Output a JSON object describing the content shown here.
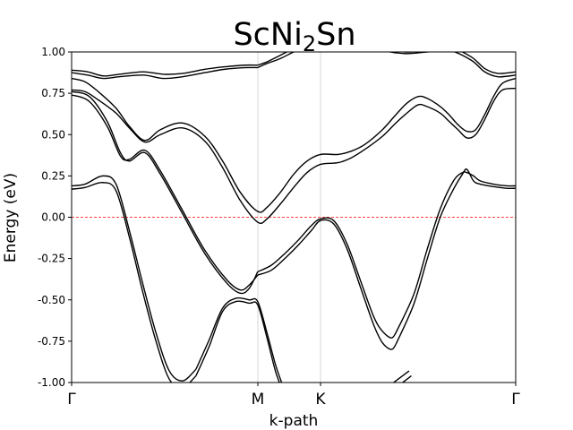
{
  "chart_data": {
    "type": "line",
    "title": {
      "prefix": "ScNi",
      "subscript": "2",
      "suffix": "Sn"
    },
    "xlabel": "k-path",
    "ylabel": "Energy (eV)",
    "ylim": [
      -1.0,
      1.0
    ],
    "yticks": [
      "-1.00",
      "-0.75",
      "-0.50",
      "-0.25",
      "0.00",
      "0.25",
      "0.50",
      "0.75",
      "1.00"
    ],
    "xlim": [
      0,
      1
    ],
    "kpoints": [
      {
        "label": "Γ",
        "x": 0.0
      },
      {
        "label": "M",
        "x": 0.4194
      },
      {
        "label": "K",
        "x": 0.5605
      },
      {
        "label": "Γ",
        "x": 1.0
      }
    ],
    "fermi_level": 0.0,
    "fermi_color": "#ff0000",
    "line_color": "#000000",
    "grid_color": "#cccccc",
    "series": [
      {
        "x": [
          0,
          0.036,
          0.071,
          0.107,
          0.161,
          0.207,
          0.25,
          0.3,
          0.344,
          0.389,
          0.419
        ],
        "values": [
          0.89,
          0.88,
          0.855,
          0.865,
          0.88,
          0.865,
          0.87,
          0.895,
          0.91,
          0.92,
          0.92
        ]
      },
      {
        "x": [
          0,
          0.036,
          0.071,
          0.107,
          0.161,
          0.207,
          0.25,
          0.3,
          0.344,
          0.389,
          0.419
        ],
        "values": [
          0.875,
          0.86,
          0.84,
          0.85,
          0.86,
          0.84,
          0.85,
          0.875,
          0.895,
          0.905,
          0.905
        ]
      },
      {
        "x": [
          0.419,
          0.44,
          0.47,
          0.5,
          0.53,
          0.5605,
          0.6,
          0.65,
          0.7,
          0.75,
          0.8,
          0.85,
          0.9,
          0.93,
          0.96,
          1.0
        ],
        "values": [
          0.92,
          0.94,
          0.98,
          1.02,
          1.05,
          1.07,
          1.09,
          1.08,
          1.03,
          1.0,
          1.01,
          1.03,
          0.97,
          0.9,
          0.87,
          0.88
        ]
      },
      {
        "x": [
          0.419,
          0.44,
          0.47,
          0.5,
          0.53,
          0.5605,
          0.6,
          0.65,
          0.7,
          0.75,
          0.8,
          0.85,
          0.9,
          0.93,
          0.96,
          1.0
        ],
        "values": [
          0.905,
          0.93,
          0.96,
          1.0,
          1.03,
          1.05,
          1.07,
          1.06,
          1.01,
          0.99,
          1.0,
          1.01,
          0.95,
          0.88,
          0.85,
          0.86
        ]
      },
      {
        "x": [
          0,
          0.03,
          0.06,
          0.1,
          0.13,
          0.165,
          0.2,
          0.25,
          0.3,
          0.34,
          0.38,
          0.419,
          0.44,
          0.47,
          0.5,
          0.53,
          0.5605,
          0.6,
          0.63,
          0.66,
          0.7,
          0.73,
          0.755,
          0.78,
          0.8,
          0.83,
          0.85,
          0.87,
          0.89,
          0.91,
          0.93,
          0.95,
          0.97,
          1.0
        ],
        "values": [
          0.84,
          0.82,
          0.76,
          0.66,
          0.55,
          0.465,
          0.53,
          0.57,
          0.49,
          0.34,
          0.15,
          0.035,
          0.06,
          0.15,
          0.26,
          0.34,
          0.38,
          0.38,
          0.4,
          0.44,
          0.53,
          0.62,
          0.69,
          0.73,
          0.72,
          0.67,
          0.62,
          0.56,
          0.52,
          0.53,
          0.62,
          0.73,
          0.81,
          0.84
        ]
      },
      {
        "x": [
          0,
          0.03,
          0.06,
          0.1,
          0.13,
          0.165,
          0.2,
          0.25,
          0.3,
          0.34,
          0.38,
          0.419,
          0.44,
          0.47,
          0.5,
          0.53,
          0.5605,
          0.6,
          0.63,
          0.66,
          0.7,
          0.73,
          0.755,
          0.78,
          0.8,
          0.83,
          0.85,
          0.87,
          0.89,
          0.91,
          0.93,
          0.95,
          0.97,
          1.0
        ],
        "values": [
          0.77,
          0.76,
          0.71,
          0.63,
          0.54,
          0.455,
          0.5,
          0.54,
          0.46,
          0.3,
          0.1,
          -0.03,
          -0.01,
          0.08,
          0.18,
          0.27,
          0.32,
          0.33,
          0.36,
          0.41,
          0.49,
          0.57,
          0.63,
          0.68,
          0.67,
          0.63,
          0.58,
          0.53,
          0.48,
          0.5,
          0.59,
          0.7,
          0.77,
          0.78
        ]
      },
      {
        "x": [
          0,
          0.04,
          0.08,
          0.11,
          0.13,
          0.165,
          0.2,
          0.25,
          0.3,
          0.35,
          0.38,
          0.4,
          0.419
        ],
        "values": [
          0.76,
          0.73,
          0.58,
          0.39,
          0.34,
          0.39,
          0.26,
          0.02,
          -0.22,
          -0.4,
          -0.46,
          -0.43,
          -0.33
        ]
      },
      {
        "x": [
          0,
          0.04,
          0.08,
          0.11,
          0.13,
          0.165,
          0.2,
          0.25,
          0.3,
          0.35,
          0.38,
          0.4,
          0.419
        ],
        "values": [
          0.74,
          0.7,
          0.55,
          0.37,
          0.35,
          0.405,
          0.28,
          0.04,
          -0.2,
          -0.38,
          -0.44,
          -0.41,
          -0.35
        ]
      },
      {
        "x": [
          0.419,
          0.45,
          0.48,
          0.51,
          0.54,
          0.5605,
          0.59,
          0.62,
          0.65,
          0.68,
          0.7,
          0.72,
          0.73
        ],
        "values": [
          -0.33,
          -0.29,
          -0.22,
          -0.14,
          -0.05,
          -0.01,
          -0.02,
          -0.16,
          -0.38,
          -0.6,
          -0.69,
          -0.73,
          -0.7
        ]
      },
      {
        "x": [
          0.419,
          0.45,
          0.48,
          0.51,
          0.54,
          0.5605,
          0.59,
          0.62,
          0.65,
          0.68,
          0.7,
          0.72,
          0.73
        ],
        "values": [
          -0.35,
          -0.32,
          -0.25,
          -0.17,
          -0.08,
          -0.02,
          -0.04,
          -0.19,
          -0.42,
          -0.65,
          -0.76,
          -0.8,
          -0.77
        ]
      },
      {
        "x": [
          0.73,
          0.77,
          0.8,
          0.83,
          0.86,
          0.88,
          0.89,
          0.905,
          0.92,
          0.95,
          0.98,
          1.0
        ],
        "values": [
          -0.7,
          -0.47,
          -0.2,
          0.05,
          0.22,
          0.27,
          0.27,
          0.25,
          0.22,
          0.2,
          0.19,
          0.19
        ]
      },
      {
        "x": [
          0.73,
          0.77,
          0.8,
          0.83,
          0.86,
          0.88,
          0.89,
          0.905,
          0.92,
          0.95,
          0.98,
          1.0
        ],
        "values": [
          -0.77,
          -0.53,
          -0.26,
          0.0,
          0.17,
          0.26,
          0.29,
          0.22,
          0.2,
          0.185,
          0.175,
          0.175
        ]
      },
      {
        "x": [
          0,
          0.03,
          0.07,
          0.1,
          0.13,
          0.16,
          0.19,
          0.22,
          0.25,
          0.28
        ],
        "values": [
          0.19,
          0.2,
          0.25,
          0.2,
          -0.08,
          -0.4,
          -0.7,
          -0.93,
          -0.99,
          -0.92
        ]
      },
      {
        "x": [
          0,
          0.03,
          0.07,
          0.1,
          0.13,
          0.16,
          0.19,
          0.22,
          0.25,
          0.28
        ],
        "values": [
          0.17,
          0.18,
          0.21,
          0.16,
          -0.12,
          -0.45,
          -0.75,
          -0.98,
          -1.03,
          -0.96
        ]
      },
      {
        "x": [
          0.28,
          0.31,
          0.34,
          0.37,
          0.4,
          0.419,
          0.44,
          0.46,
          0.48
        ],
        "values": [
          -0.92,
          -0.74,
          -0.55,
          -0.49,
          -0.5,
          -0.51,
          -0.7,
          -0.9,
          -1.05
        ]
      },
      {
        "x": [
          0.28,
          0.31,
          0.34,
          0.37,
          0.4,
          0.419,
          0.44,
          0.46,
          0.48
        ],
        "values": [
          -0.96,
          -0.78,
          -0.57,
          -0.51,
          -0.52,
          -0.53,
          -0.73,
          -0.94,
          -1.08
        ]
      },
      {
        "x": [
          0.7,
          0.73,
          0.76
        ],
        "values": [
          -1.05,
          -0.99,
          -0.93
        ]
      },
      {
        "x": [
          0.705,
          0.735,
          0.765
        ],
        "values": [
          -1.07,
          -1.02,
          -0.96
        ]
      }
    ]
  }
}
